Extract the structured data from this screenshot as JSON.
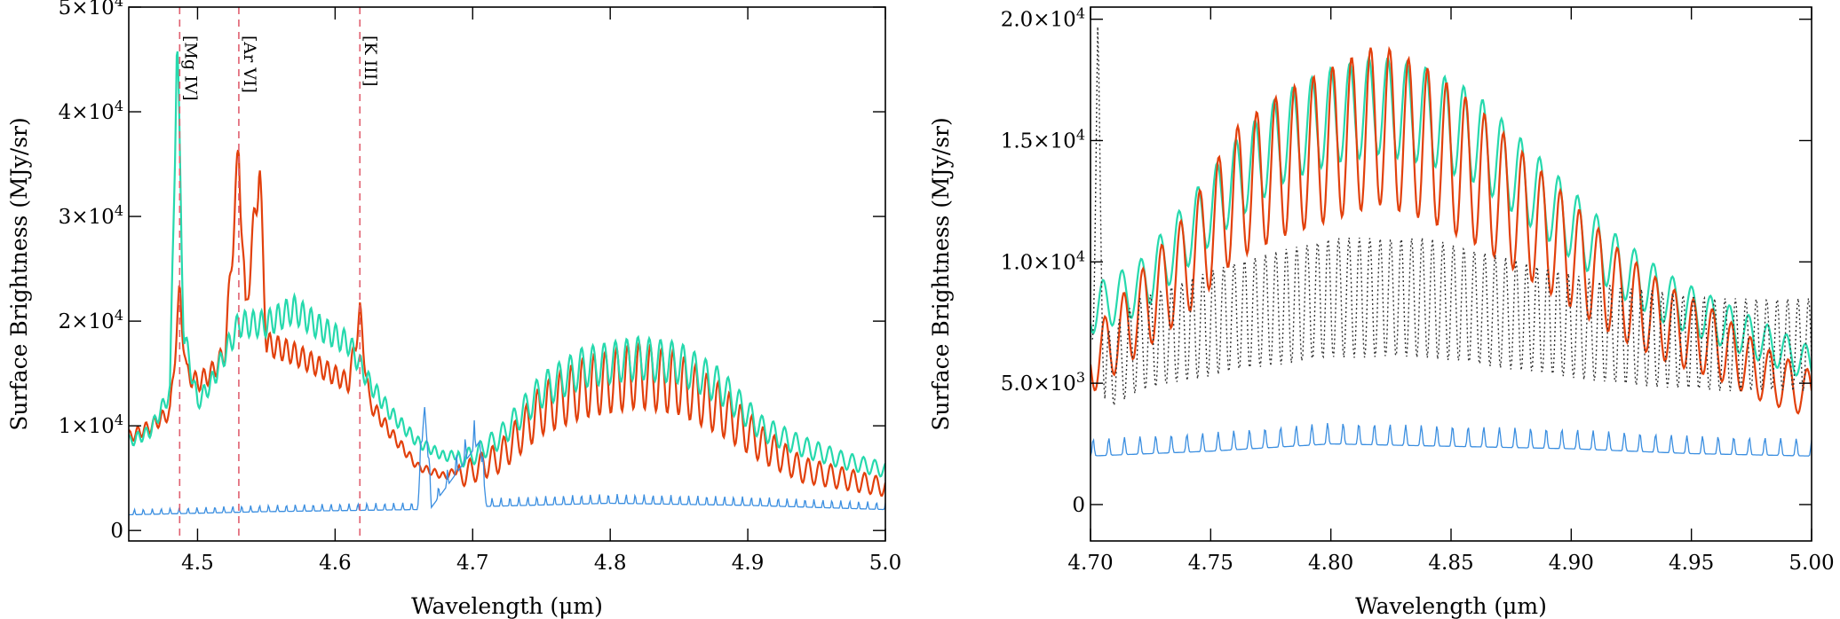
{
  "colors": {
    "red": "#e2400c",
    "teal": "#26d9ad",
    "blue": "#3a8ee0",
    "dotted": "#333333",
    "line_marker": "#e06070",
    "axes": "#000000"
  },
  "chart_data": [
    {
      "type": "line",
      "xlabel": "Wavelength (μm)",
      "ylabel": "Surface Brightness (MJy/sr)",
      "xlim": [
        4.45,
        5.0
      ],
      "ylim": [
        -1000,
        50000
      ],
      "x_ticks": [
        4.5,
        4.6,
        4.7,
        4.8,
        4.9,
        5.0
      ],
      "x_tick_labels": [
        "4.5",
        "4.6",
        "4.7",
        "4.8",
        "4.9",
        "5.0"
      ],
      "y_ticks": [
        0,
        10000,
        20000,
        30000,
        40000,
        50000
      ],
      "y_tick_labels": [
        "0",
        "1×10⁴",
        "2×10⁴",
        "3×10⁴",
        "4×10⁴",
        "5×10⁴"
      ],
      "grid": false,
      "line_markers": [
        {
          "label": "[Mg IV]",
          "x": 4.487
        },
        {
          "label": "[Ar VI]",
          "x": 4.53
        },
        {
          "label": "[K III]",
          "x": 4.618
        }
      ],
      "series": [
        {
          "color_key": "red",
          "points": [
            [
              4.45,
              9500
            ],
            [
              4.465,
              10500
            ],
            [
              4.48,
              12000
            ],
            [
              4.487,
              24000
            ],
            [
              4.492,
              16000
            ],
            [
              4.5,
              15000
            ],
            [
              4.51,
              16000
            ],
            [
              4.52,
              18000
            ],
            [
              4.53,
              38500
            ],
            [
              4.535,
              22000
            ],
            [
              4.545,
              37000
            ],
            [
              4.55,
              19000
            ],
            [
              4.57,
              18000
            ],
            [
              4.59,
              16500
            ],
            [
              4.61,
              15000
            ],
            [
              4.618,
              22000
            ],
            [
              4.625,
              13000
            ],
            [
              4.64,
              10000
            ],
            [
              4.66,
              6500
            ],
            [
              4.68,
              5500
            ],
            [
              4.7,
              7000
            ],
            [
              4.72,
              8500
            ],
            [
              4.75,
              14000
            ],
            [
              4.78,
              16500
            ],
            [
              4.82,
              18000
            ],
            [
              4.85,
              17000
            ],
            [
              4.88,
              14000
            ],
            [
              4.91,
              10000
            ],
            [
              4.94,
              7000
            ],
            [
              4.97,
              6000
            ],
            [
              5.0,
              5000
            ]
          ]
        },
        {
          "color_key": "teal",
          "points": [
            [
              4.45,
              9000
            ],
            [
              4.465,
              10000
            ],
            [
              4.48,
              14000
            ],
            [
              4.485,
              50000
            ],
            [
              4.49,
              20000
            ],
            [
              4.5,
              13000
            ],
            [
              4.51,
              15000
            ],
            [
              4.52,
              18000
            ],
            [
              4.53,
              21000
            ],
            [
              4.55,
              21000
            ],
            [
              4.57,
              22500
            ],
            [
              4.59,
              20500
            ],
            [
              4.61,
              19000
            ],
            [
              4.625,
              15000
            ],
            [
              4.64,
              12000
            ],
            [
              4.66,
              9000
            ],
            [
              4.68,
              7500
            ],
            [
              4.7,
              8000
            ],
            [
              4.72,
              10000
            ],
            [
              4.75,
              15000
            ],
            [
              4.78,
              17500
            ],
            [
              4.82,
              18500
            ],
            [
              4.85,
              18000
            ],
            [
              4.88,
              15500
            ],
            [
              4.91,
              11000
            ],
            [
              4.94,
              9000
            ],
            [
              4.97,
              7500
            ],
            [
              5.0,
              6500
            ]
          ]
        },
        {
          "color_key": "blue",
          "points": [
            [
              4.45,
              1500
            ],
            [
              4.55,
              1800
            ],
            [
              4.66,
              2000
            ],
            [
              4.665,
              12000
            ],
            [
              4.67,
              2200
            ],
            [
              4.705,
              8500
            ],
            [
              4.71,
              2300
            ],
            [
              4.8,
              2600
            ],
            [
              4.9,
              2400
            ],
            [
              5.0,
              2000
            ]
          ]
        }
      ]
    },
    {
      "type": "line",
      "xlabel": "Wavelength (μm)",
      "ylabel": "Surface Brightness (MJy/sr)",
      "xlim": [
        4.7,
        5.0
      ],
      "ylim": [
        -1500,
        20500
      ],
      "x_ticks": [
        4.7,
        4.75,
        4.8,
        4.85,
        4.9,
        4.95,
        5.0
      ],
      "x_tick_labels": [
        "4.70",
        "4.75",
        "4.80",
        "4.85",
        "4.90",
        "4.95",
        "5.00"
      ],
      "y_ticks": [
        0,
        5000,
        10000,
        15000,
        20000
      ],
      "y_tick_labels": [
        "0",
        "5.0×10³",
        "1.0×10⁴",
        "1.5×10⁴",
        "2.0×10⁴"
      ],
      "grid": false,
      "series": [
        {
          "color_key": "teal",
          "points": [
            [
              4.7,
              9000
            ],
            [
              4.72,
              10000
            ],
            [
              4.74,
              12500
            ],
            [
              4.76,
              15000
            ],
            [
              4.78,
              17000
            ],
            [
              4.8,
              18000
            ],
            [
              4.82,
              18500
            ],
            [
              4.84,
              18000
            ],
            [
              4.86,
              17000
            ],
            [
              4.88,
              15000
            ],
            [
              4.9,
              13000
            ],
            [
              4.92,
              11000
            ],
            [
              4.94,
              9500
            ],
            [
              4.96,
              8500
            ],
            [
              4.98,
              7500
            ],
            [
              5.0,
              6500
            ]
          ]
        },
        {
          "color_key": "red",
          "points": [
            [
              4.7,
              7000
            ],
            [
              4.72,
              9500
            ],
            [
              4.74,
              12000
            ],
            [
              4.76,
              15500
            ],
            [
              4.78,
              17000
            ],
            [
              4.8,
              18000
            ],
            [
              4.82,
              19000
            ],
            [
              4.84,
              18000
            ],
            [
              4.86,
              16500
            ],
            [
              4.88,
              14500
            ],
            [
              4.9,
              12500
            ],
            [
              4.92,
              10500
            ],
            [
              4.94,
              9000
            ],
            [
              4.96,
              8000
            ],
            [
              4.98,
              6500
            ],
            [
              5.0,
              5500
            ]
          ]
        },
        {
          "color_key": "dotted",
          "points": [
            [
              4.7,
              9000
            ],
            [
              4.703,
              20000
            ],
            [
              4.706,
              7000
            ],
            [
              4.72,
              8500
            ],
            [
              4.76,
              10000
            ],
            [
              4.8,
              11000
            ],
            [
              4.84,
              11000
            ],
            [
              4.88,
              10000
            ],
            [
              4.92,
              9000
            ],
            [
              4.96,
              8500
            ],
            [
              5.0,
              8500
            ]
          ]
        },
        {
          "color_key": "blue",
          "points": [
            [
              4.7,
              2000
            ],
            [
              4.75,
              2200
            ],
            [
              4.8,
              2500
            ],
            [
              4.85,
              2400
            ],
            [
              4.9,
              2300
            ],
            [
              4.95,
              2100
            ],
            [
              5.0,
              2000
            ]
          ]
        }
      ]
    }
  ]
}
